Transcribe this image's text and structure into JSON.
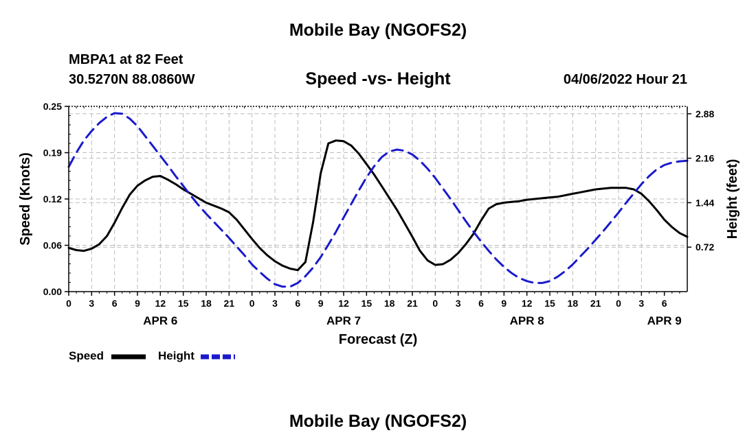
{
  "header": {
    "title": "Mobile Bay (NGOFS2)",
    "station": "MBPA1 at 82 Feet",
    "coords": "30.5270N  88.0860W",
    "chart_title": "Speed -vs- Height",
    "timestamp": "04/06/2022 Hour 21"
  },
  "footer": {
    "title": "Mobile Bay (NGOFS2)"
  },
  "legend": {
    "speed": "Speed",
    "height": "Height"
  },
  "colors": {
    "speed": "#000000",
    "height": "#1a1acc",
    "grid": "#bbbbbb"
  },
  "chart_data": {
    "type": "line",
    "title": "Speed -vs- Height",
    "xlabel": "Forecast (Z)",
    "ylabel": "Speed (Knots)",
    "y2label": "Height (feet)",
    "x_range_hours": [
      0,
      81
    ],
    "x_ticks": [
      "0",
      "3",
      "6",
      "9",
      "12",
      "15",
      "18",
      "21",
      "0",
      "3",
      "6",
      "9",
      "12",
      "15",
      "18",
      "21",
      "0",
      "3",
      "6",
      "9",
      "12",
      "15",
      "18",
      "21",
      "0",
      "3",
      "6"
    ],
    "date_labels": [
      {
        "label": "APR 6",
        "hour": 12
      },
      {
        "label": "APR 7",
        "hour": 36
      },
      {
        "label": "APR 8",
        "hour": 60
      },
      {
        "label": "APR 9",
        "hour": 78
      }
    ],
    "ylim": [
      0,
      0.25
    ],
    "y_ticks": [
      "0.00",
      "0.06",
      "0.12",
      "0.19",
      "0.25"
    ],
    "y2lim": [
      0,
      3.0
    ],
    "y2_ticks": [
      "0.72",
      "1.44",
      "2.16",
      "2.88"
    ],
    "grid": true,
    "legend_position": "bottom-left",
    "series": [
      {
        "name": "Speed",
        "axis": "left",
        "style": "solid",
        "x": [
          0,
          1,
          2,
          3,
          4,
          5,
          6,
          7,
          8,
          9,
          10,
          11,
          12,
          13,
          14,
          15,
          16,
          17,
          18,
          19,
          20,
          21,
          22,
          23,
          24,
          25,
          26,
          27,
          28,
          29,
          30,
          31,
          32,
          33,
          34,
          35,
          36,
          37,
          38,
          39,
          40,
          41,
          42,
          43,
          44,
          45,
          46,
          47,
          48,
          49,
          50,
          51,
          52,
          53,
          54,
          55,
          56,
          57,
          58,
          59,
          60,
          61,
          62,
          63,
          64,
          65,
          66,
          67,
          68,
          69,
          70,
          71,
          72,
          73,
          74,
          75,
          76,
          77,
          78,
          79,
          80,
          81
        ],
        "values": [
          0.059,
          0.056,
          0.055,
          0.058,
          0.064,
          0.075,
          0.093,
          0.113,
          0.131,
          0.143,
          0.15,
          0.155,
          0.156,
          0.151,
          0.145,
          0.138,
          0.132,
          0.126,
          0.12,
          0.116,
          0.112,
          0.107,
          0.097,
          0.084,
          0.071,
          0.059,
          0.049,
          0.041,
          0.035,
          0.031,
          0.029,
          0.04,
          0.094,
          0.16,
          0.2,
          0.204,
          0.203,
          0.197,
          0.186,
          0.172,
          0.158,
          0.142,
          0.126,
          0.11,
          0.092,
          0.074,
          0.055,
          0.042,
          0.036,
          0.037,
          0.043,
          0.052,
          0.064,
          0.078,
          0.096,
          0.112,
          0.118,
          0.12,
          0.121,
          0.122,
          0.124,
          0.125,
          0.126,
          0.127,
          0.128,
          0.13,
          0.132,
          0.134,
          0.136,
          0.138,
          0.139,
          0.14,
          0.14,
          0.14,
          0.138,
          0.132,
          0.122,
          0.11,
          0.097,
          0.087,
          0.079,
          0.074
        ]
      },
      {
        "name": "Height",
        "axis": "right",
        "style": "dashed",
        "x": [
          0,
          1,
          2,
          3,
          4,
          5,
          6,
          7,
          8,
          9,
          10,
          11,
          12,
          13,
          14,
          15,
          16,
          17,
          18,
          19,
          20,
          21,
          22,
          23,
          24,
          25,
          26,
          27,
          28,
          29,
          30,
          31,
          32,
          33,
          34,
          35,
          36,
          37,
          38,
          39,
          40,
          41,
          42,
          43,
          44,
          45,
          46,
          47,
          48,
          49,
          50,
          51,
          52,
          53,
          54,
          55,
          56,
          57,
          58,
          59,
          60,
          61,
          62,
          63,
          64,
          65,
          66,
          67,
          68,
          69,
          70,
          71,
          72,
          73,
          74,
          75,
          76,
          77,
          78,
          79,
          80,
          81
        ],
        "values": [
          2.02,
          2.25,
          2.45,
          2.6,
          2.73,
          2.83,
          2.89,
          2.88,
          2.8,
          2.68,
          2.52,
          2.36,
          2.2,
          2.04,
          1.87,
          1.71,
          1.55,
          1.4,
          1.26,
          1.13,
          1.0,
          0.87,
          0.73,
          0.59,
          0.44,
          0.32,
          0.21,
          0.12,
          0.08,
          0.08,
          0.14,
          0.25,
          0.39,
          0.56,
          0.76,
          0.97,
          1.2,
          1.42,
          1.64,
          1.85,
          2.03,
          2.18,
          2.27,
          2.3,
          2.28,
          2.22,
          2.12,
          1.99,
          1.84,
          1.67,
          1.5,
          1.32,
          1.14,
          0.97,
          0.81,
          0.66,
          0.52,
          0.4,
          0.3,
          0.22,
          0.17,
          0.14,
          0.14,
          0.17,
          0.24,
          0.33,
          0.44,
          0.57,
          0.7,
          0.84,
          0.98,
          1.13,
          1.28,
          1.44,
          1.59,
          1.74,
          1.87,
          1.98,
          2.05,
          2.09,
          2.11,
          2.12
        ]
      }
    ]
  }
}
